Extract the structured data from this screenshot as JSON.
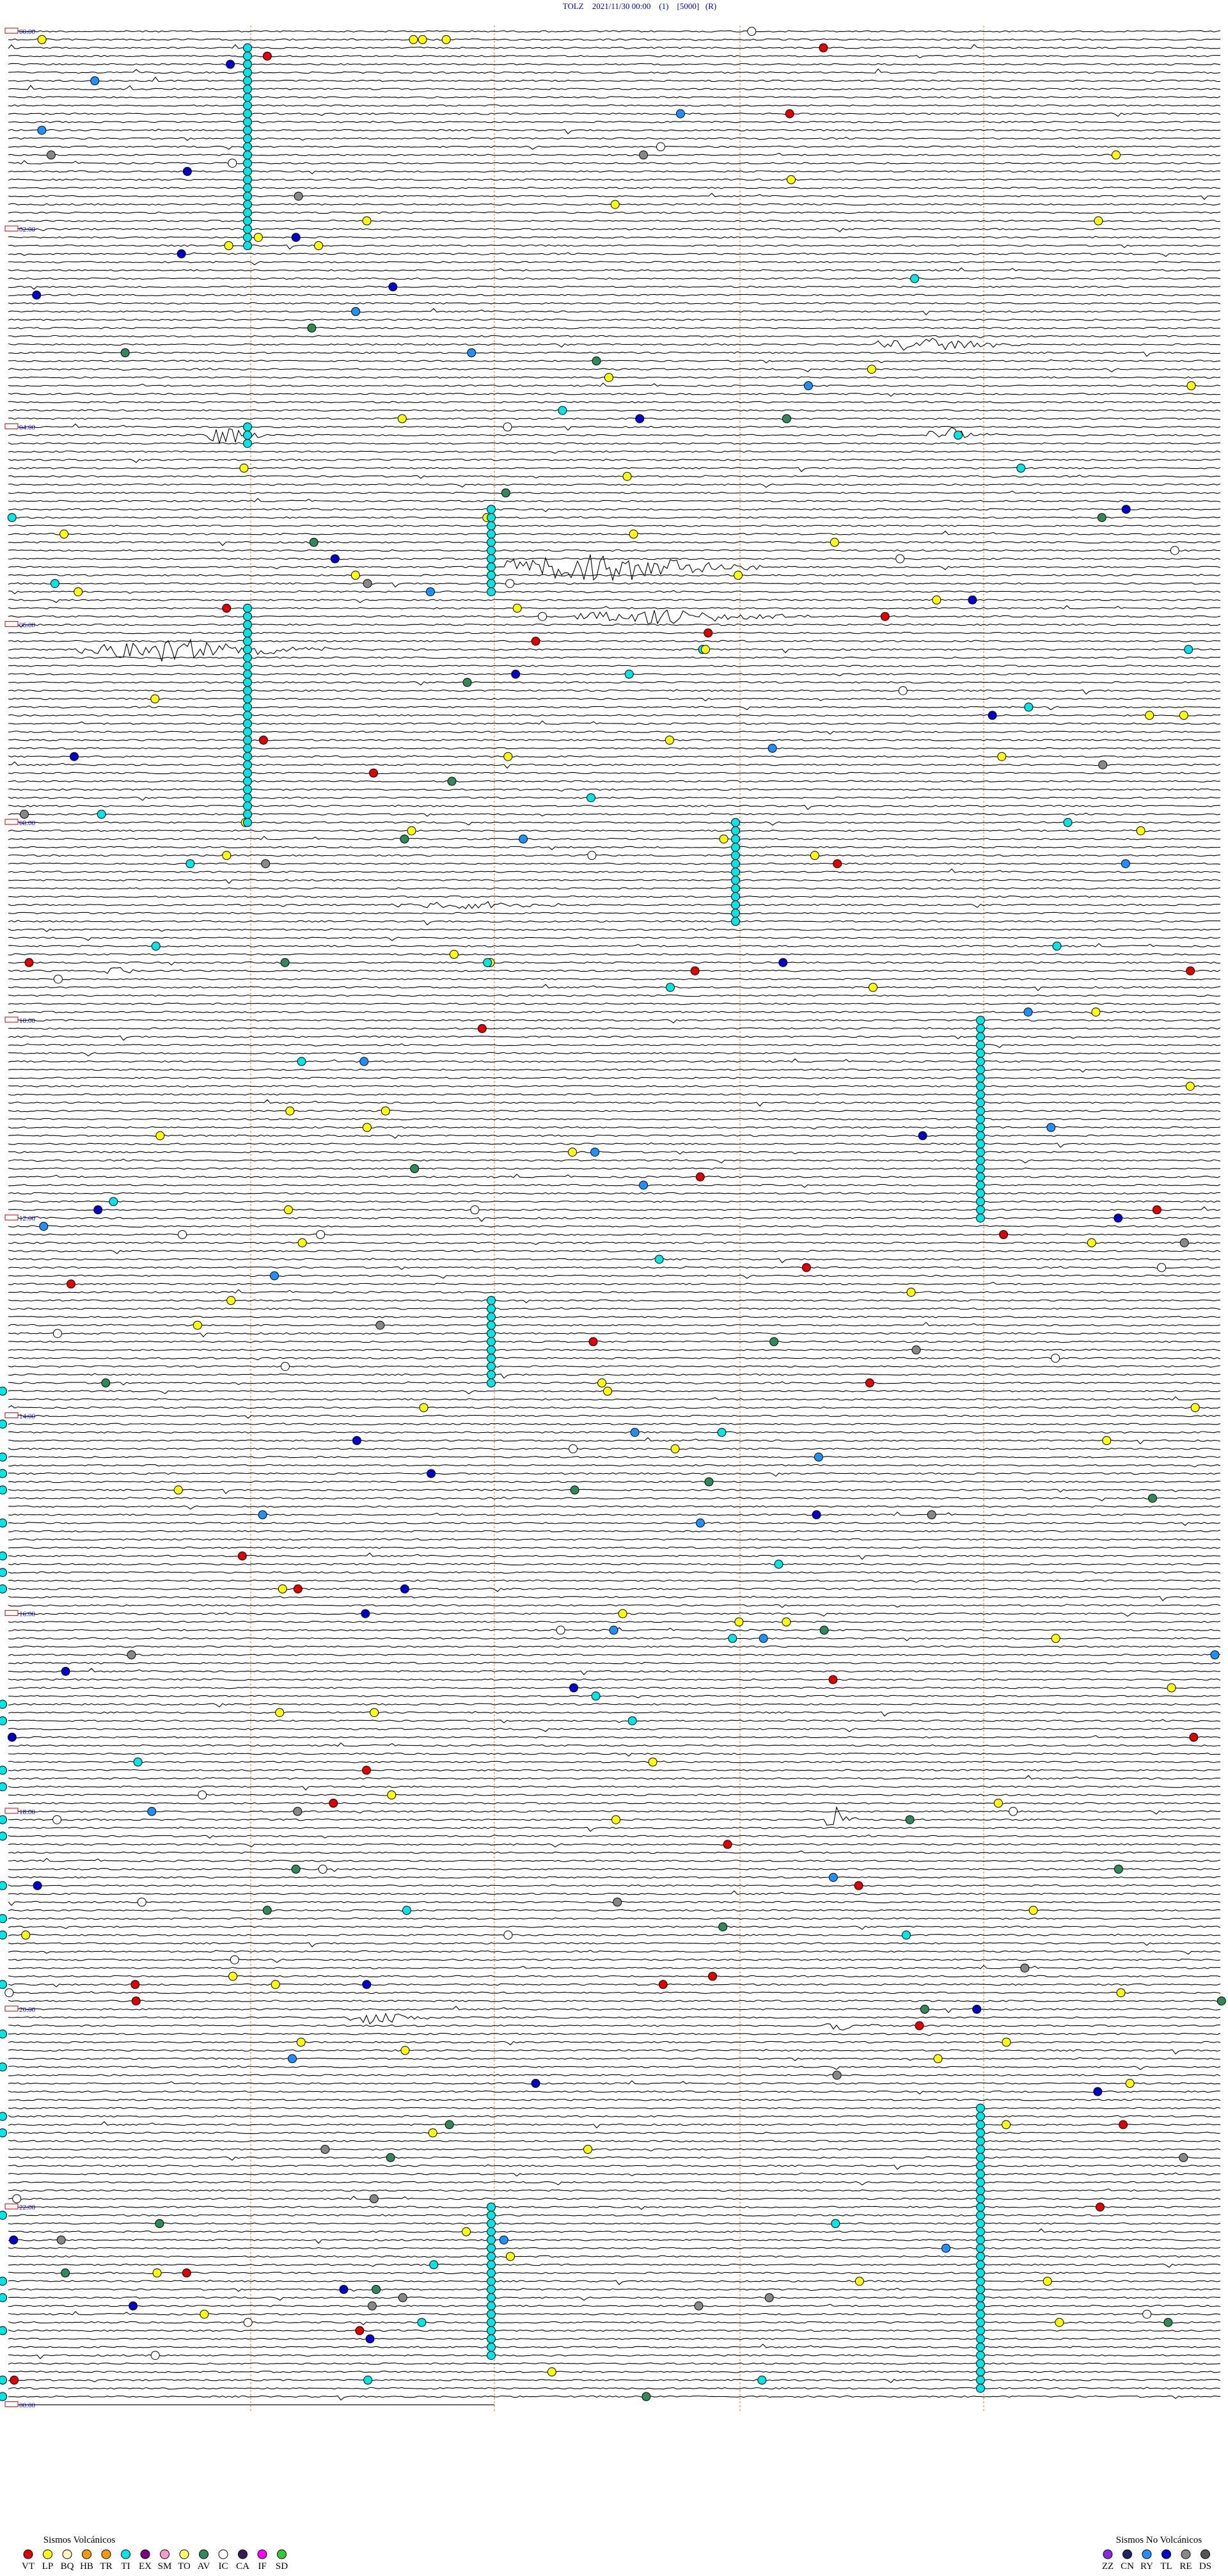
{
  "header": {
    "title": "TOLZ    2021/11/30 00:00    (1)    [5000]   (R)"
  },
  "time_labels": [
    "00:00",
    "02:00",
    "04:00",
    "06:00",
    "08:00",
    "10:00",
    "12:00",
    "14:00",
    "16:00",
    "18:00",
    "20:00",
    "22:00",
    "00:00"
  ],
  "legend": {
    "volcanic": {
      "title": "Sismos Volcánicos",
      "items": [
        {
          "label": "VT",
          "color": "#e00000"
        },
        {
          "label": "LP",
          "color": "#ffff00"
        },
        {
          "label": "BQ",
          "color": "#fff8c0"
        },
        {
          "label": "HB",
          "color": "#ff9900"
        },
        {
          "label": "TR",
          "color": "#ff9900"
        },
        {
          "label": "TI",
          "color": "#00e5e5"
        },
        {
          "label": "EX",
          "color": "#800080"
        },
        {
          "label": "SM",
          "color": "#ff99cc"
        },
        {
          "label": "TO",
          "color": "#ffff66"
        },
        {
          "label": "AV",
          "color": "#2e8b57"
        },
        {
          "label": "IC",
          "color": "#ffffff"
        },
        {
          "label": "CA",
          "color": "#3a1a5a"
        },
        {
          "label": "IF",
          "color": "#ff00ff"
        },
        {
          "label": "SD",
          "color": "#33cc33"
        }
      ]
    },
    "non_volcanic": {
      "title": "Sismos No Volcánicos",
      "items": [
        {
          "label": "ZZ",
          "color": "#8a2be2"
        },
        {
          "label": "CN",
          "color": "#222266"
        },
        {
          "label": "RY",
          "color": "#1e90ff"
        },
        {
          "label": "TL",
          "color": "#0000cc"
        },
        {
          "label": "RE",
          "color": "#888888"
        },
        {
          "label": "DS",
          "color": "#555555"
        }
      ]
    }
  }
}
